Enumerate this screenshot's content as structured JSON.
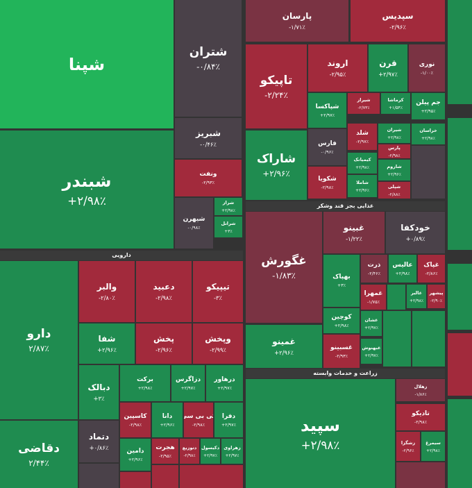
{
  "sections": [
    "دارویی",
    "غذایی بجز قند وشکر",
    "زراعت و خدمات وابسته"
  ],
  "tiles": [
    {
      "name": "شپنا"
    },
    {
      "name": "شبندر",
      "change": "+۲/۹۸٪"
    },
    {
      "name": "شتران",
      "change": "-۰/۸۴٪"
    },
    {
      "name": "شبریز",
      "change": "-۰/۴۶٪"
    },
    {
      "name": "ونفت",
      "change": "-۲/۹۳٪"
    },
    {
      "name": "شیهرن",
      "change": "-۰/۹۸٪"
    },
    {
      "name": "شراز",
      "change": "+۲/۹۸٪"
    },
    {
      "name": "شرانل",
      "change": "+۳٪"
    },
    {
      "name": "پارسان",
      "change": "-۱/۷۱٪"
    },
    {
      "name": "سپدیس",
      "change": "-۲/۹۶٪"
    },
    {
      "name": "تاپیکو",
      "change": "-۲/۲۴٪"
    },
    {
      "name": "اروند",
      "change": "-۲/۹۵٪"
    },
    {
      "name": "قرن",
      "change": "+۲/۹۷٪"
    },
    {
      "name": "نوری",
      "change": "-۱/۰۰٪"
    },
    {
      "name": "شاراک",
      "change": "+۲/۹۶٪"
    },
    {
      "name": "شپاکسا",
      "change": "+۲/۹۷٪"
    },
    {
      "name": "شیراز",
      "change": "-۲/۷۳٪"
    },
    {
      "name": "کرماشا",
      "change": "+۱/۵۴٪"
    },
    {
      "name": "جم پیلن",
      "change": "+۲/۹۵٪"
    },
    {
      "name": "فارس",
      "change": "-۰/۹۶٪"
    },
    {
      "name": "شکویا",
      "change": "-۲/۹۸٪"
    },
    {
      "name": "شلد",
      "change": "-۲/۹۷٪"
    },
    {
      "name": "شیران",
      "change": "+۲/۹۸٪"
    },
    {
      "name": "خراسان",
      "change": "+۲/۹۸٪"
    },
    {
      "name": "کیمیاتک",
      "change": "+۲/۹۸٪"
    },
    {
      "name": "شاملا",
      "change": "+۲/۹۶٪"
    },
    {
      "name": "پارس",
      "change": "-۲/۹۸٪"
    },
    {
      "name": "شاروم",
      "change": "+۲/۹۶٪"
    },
    {
      "name": "شپلی",
      "change": "-۲/۸۸٪"
    },
    {
      "name": "غگورش",
      "change": "-۱/۸۳٪"
    },
    {
      "name": "غبینو",
      "change": "-۱/۲۲٪"
    },
    {
      "name": "خودکفا",
      "change": "+۰/۸۹٪"
    },
    {
      "name": "بهپاک",
      "change": "+۳٪"
    },
    {
      "name": "ذرت",
      "change": "-۲/۴۶٪"
    },
    {
      "name": "عالیس",
      "change": "+۲/۹۸٪"
    },
    {
      "name": "غپاک",
      "change": "-۲/۸۶٪"
    },
    {
      "name": "غمهرا",
      "change": "-۱/۷۵٪"
    },
    {
      "name": "غالبر",
      "change": "+۲/۹۸٪"
    },
    {
      "name": "پیشهر",
      "change": "-۲/۹۰٪"
    },
    {
      "name": "کوچین",
      "change": "+۲/۹۸٪"
    },
    {
      "name": "غشان",
      "change": "+۲/۹۷٪"
    },
    {
      "name": "غمینو",
      "change": "+۲/۹۶٪"
    },
    {
      "name": "غسبینو",
      "change": "-۲/۹۳٪"
    },
    {
      "name": "غبهنوش",
      "change": "+۲/۹۷٪"
    },
    {
      "name": "سپید",
      "change": "+۲/۹۸٪"
    },
    {
      "name": "زهلال",
      "change": "-۱/۸۶٪"
    },
    {
      "name": "تادیکو",
      "change": "-۲/۹۸٪"
    },
    {
      "name": "زشگزا",
      "change": "-۲/۹۶٪"
    },
    {
      "name": "سیمرغ",
      "change": "+۲/۹۸٪"
    },
    {
      "name": "دارو",
      "change": "۲/۸۷٪"
    },
    {
      "name": "دقاضی",
      "change": "۲/۴۴٪"
    },
    {
      "name": "والبر",
      "change": "-۲/۸۰٪"
    },
    {
      "name": "دعبید",
      "change": "-۲/۹۸٪"
    },
    {
      "name": "تیپیکو",
      "change": "-۳٪"
    },
    {
      "name": "شفا",
      "change": "+۲/۹۶٪"
    },
    {
      "name": "پخش",
      "change": "-۲/۹۶٪"
    },
    {
      "name": "وپخش",
      "change": "-۲/۹۹٪"
    },
    {
      "name": "دبالک",
      "change": "+۳٪"
    },
    {
      "name": "برکت",
      "change": "+۲/۹۸٪"
    },
    {
      "name": "دزاگرس",
      "change": "+۲/۹۷٪"
    },
    {
      "name": "درهاور",
      "change": "+۲/۹۷٪"
    },
    {
      "name": "دتماد",
      "change": "+۰/۸۶٪"
    },
    {
      "name": "کاسپین",
      "change": "-۲/۹۸٪"
    },
    {
      "name": "دانا",
      "change": "+۲/۹۶٪"
    },
    {
      "name": "کی بی سی",
      "change": "-۲/۹۸٪"
    },
    {
      "name": "دفرا",
      "change": "+۲/۹۷٪"
    },
    {
      "name": "دامین",
      "change": "+۲/۹۶٪"
    },
    {
      "name": "هجرت",
      "change": "-۲/۹۵٪"
    },
    {
      "name": "دتوزیع",
      "change": "-۲/۹۸٪"
    },
    {
      "name": "دکیسول",
      "change": "+۲/۹۷٪"
    },
    {
      "name": "زهراوی",
      "change": "+۲/۹۷٪"
    }
  ]
}
